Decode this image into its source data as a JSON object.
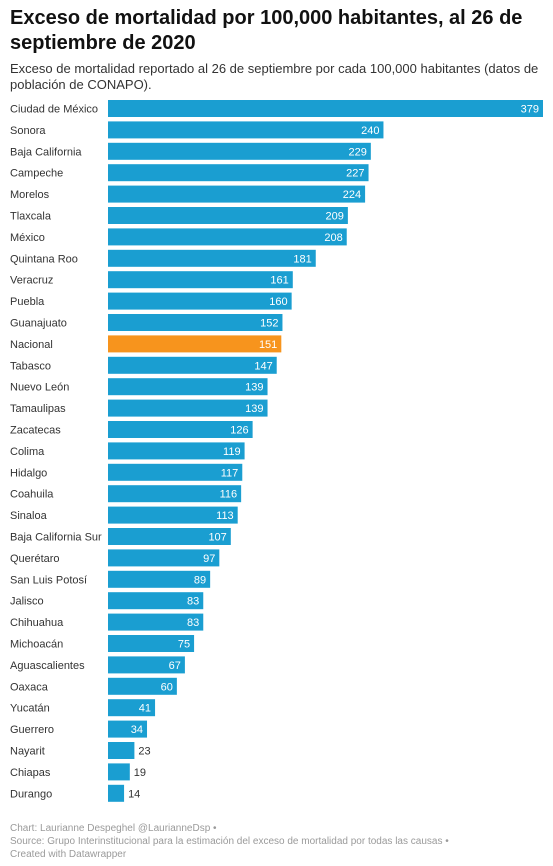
{
  "header": {
    "title": "Exceso de mortalidad por 100,000 habitantes, al 26 de septiembre de 2020",
    "subtitle": "Exceso de mortalidad reportado al 26 de septiembre por cada 100,000 habitantes (datos de población de CONAPO)."
  },
  "footer": {
    "credit": "Chart: Laurianne Despeghel @LaurianneDsp •",
    "source": "Source: Grupo Interinstitucional para la estimación del exceso de mortalidad por todas las causas •",
    "tool": "Created with Datawrapper"
  },
  "chart_data": {
    "type": "bar",
    "orientation": "horizontal",
    "title": "Exceso de mortalidad por 100,000 habitantes, al 26 de septiembre de 2020",
    "subtitle": "Exceso de mortalidad reportado al 26 de septiembre por cada 100,000 habitantes (datos de población de CONAPO).",
    "xlabel": "",
    "ylabel": "",
    "xlim": [
      0,
      379
    ],
    "grid": false,
    "colors": {
      "default": "#1a9ed1",
      "highlight": "#f7941d"
    },
    "highlight_category": "Nacional",
    "categories": [
      "Ciudad de México",
      "Sonora",
      "Baja California",
      "Campeche",
      "Morelos",
      "Tlaxcala",
      "México",
      "Quintana Roo",
      "Veracruz",
      "Puebla",
      "Guanajuato",
      "Nacional",
      "Tabasco",
      "Nuevo León",
      "Tamaulipas",
      "Zacatecas",
      "Colima",
      "Hidalgo",
      "Coahuila",
      "Sinaloa",
      "Baja California Sur",
      "Querétaro",
      "San Luis Potosí",
      "Jalisco",
      "Chihuahua",
      "Michoacán",
      "Aguascalientes",
      "Oaxaca",
      "Yucatán",
      "Guerrero",
      "Nayarit",
      "Chiapas",
      "Durango"
    ],
    "values": [
      379,
      240,
      229,
      227,
      224,
      209,
      208,
      181,
      161,
      160,
      152,
      151,
      147,
      139,
      139,
      126,
      119,
      117,
      116,
      113,
      107,
      97,
      89,
      83,
      83,
      75,
      67,
      60,
      41,
      34,
      23,
      19,
      14
    ]
  }
}
